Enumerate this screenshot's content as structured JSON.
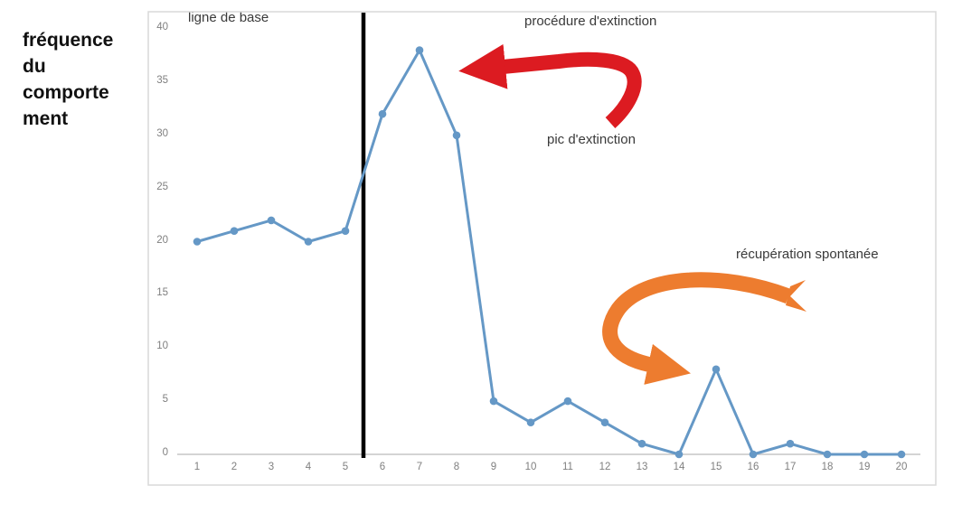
{
  "y_axis_title": "fréquence\ndu\ncomporte\nment",
  "annotations": {
    "baseline": "ligne de base",
    "extinction_procedure": "procédure d'extinction",
    "extinction_peak": "pic d'extinction",
    "spontaneous_recovery": "récupération spontanée"
  },
  "colors": {
    "line": "#6598C6",
    "marker": "#6598C6",
    "red_arrow": "#DC1B21",
    "orange_arrow": "#ED7C2F",
    "axis_text": "#7F7F7F",
    "annotation_text": "#3A3A3A",
    "chart_border": "#D9D9D9",
    "axis_line": "#C6C6C6",
    "phase_divider": "#000000"
  },
  "chart_data": {
    "type": "line",
    "title": "",
    "xlabel": "",
    "ylabel": "fréquence du comportement",
    "categories": [
      1,
      2,
      3,
      4,
      5,
      6,
      7,
      8,
      9,
      10,
      11,
      12,
      13,
      14,
      15,
      16,
      17,
      18,
      19,
      20
    ],
    "series": [
      {
        "name": "fréquence du comportement",
        "values": [
          20,
          21,
          22,
          20,
          21,
          32,
          38,
          30,
          5,
          3,
          5,
          3,
          1,
          0,
          8,
          0,
          1,
          0,
          0,
          0
        ]
      }
    ],
    "ylim": [
      0,
      40
    ],
    "y_ticks": [
      0,
      5,
      10,
      15,
      20,
      25,
      30,
      35,
      40
    ],
    "grid": false,
    "legend": false,
    "phase_divider_after_category": 5,
    "phases": [
      {
        "label": "ligne de base",
        "categories": [
          1,
          5
        ]
      },
      {
        "label": "procédure d'extinction",
        "categories": [
          6,
          20
        ]
      }
    ],
    "annotated_points": [
      {
        "label": "pic d'extinction",
        "category": 7,
        "value": 38,
        "arrow_color": "#DC1B21"
      },
      {
        "label": "récupération spontanée",
        "category": 15,
        "value": 8,
        "arrow_color": "#ED7C2F"
      }
    ]
  }
}
